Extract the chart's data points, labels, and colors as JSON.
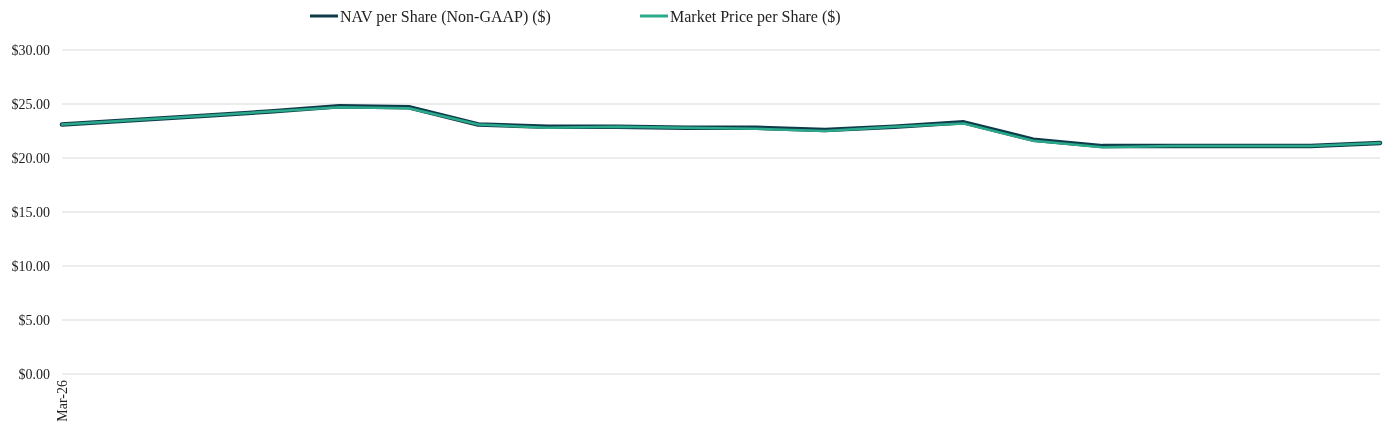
{
  "chart_data": {
    "type": "line",
    "categories": [
      "Mar-26",
      null,
      null,
      null,
      null,
      null,
      null,
      null,
      null,
      null,
      null,
      null,
      null,
      null,
      null,
      null,
      null,
      null,
      null,
      null
    ],
    "series": [
      {
        "name": "NAV per Share (Non-GAAP) ($)",
        "color": "#0f3a4a",
        "values": [
          23.1,
          23.5,
          23.9,
          24.3,
          24.8,
          24.7,
          23.1,
          22.9,
          22.9,
          22.8,
          22.8,
          22.6,
          22.9,
          23.3,
          21.7,
          21.1,
          21.1,
          21.1,
          21.1,
          21.4
        ]
      },
      {
        "name": "Market Price per Share ($)",
        "color": "#2aaa8a",
        "values": [
          23.1,
          23.5,
          23.9,
          24.3,
          24.7,
          24.6,
          23.1,
          22.8,
          22.9,
          22.8,
          22.7,
          22.5,
          22.9,
          23.2,
          21.6,
          21.0,
          21.1,
          21.1,
          21.1,
          21.4
        ]
      }
    ],
    "ylim": [
      0,
      30
    ],
    "yticks": [
      {
        "value": 0,
        "label": "$0.00"
      },
      {
        "value": 5,
        "label": "$5.00"
      },
      {
        "value": 10,
        "label": "$10.00"
      },
      {
        "value": 15,
        "label": "$15.00"
      },
      {
        "value": 20,
        "label": "$20.00"
      },
      {
        "value": 25,
        "label": "$25.00"
      },
      {
        "value": 30,
        "label": "$30.00"
      }
    ],
    "grid": "y",
    "legend": "top",
    "marker": "none",
    "line_style": "solid"
  }
}
